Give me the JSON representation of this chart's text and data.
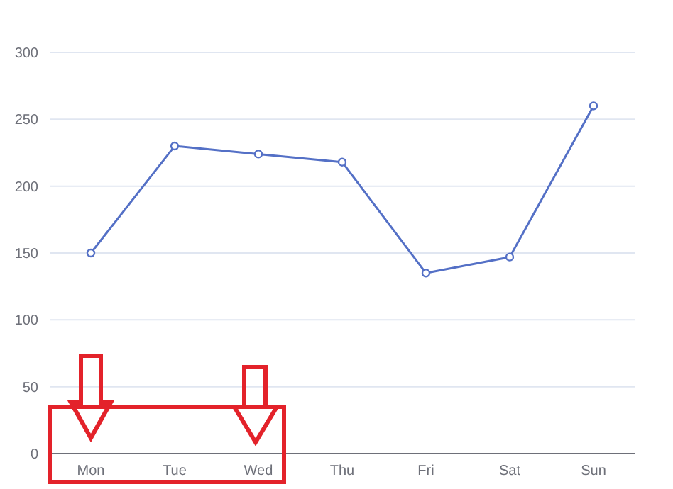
{
  "chart_data": {
    "type": "line",
    "categories": [
      "Mon",
      "Tue",
      "Wed",
      "Thu",
      "Fri",
      "Sat",
      "Sun"
    ],
    "series": [
      {
        "color": "#5470c6",
        "values": [
          150,
          230,
          224,
          218,
          135,
          147,
          260
        ]
      }
    ],
    "ylim": [
      0,
      300
    ],
    "yticks": [
      0,
      50,
      100,
      150,
      200,
      250,
      300
    ],
    "grid": "y",
    "marker": "circle",
    "line_style": "solid",
    "legend": false
  }
}
